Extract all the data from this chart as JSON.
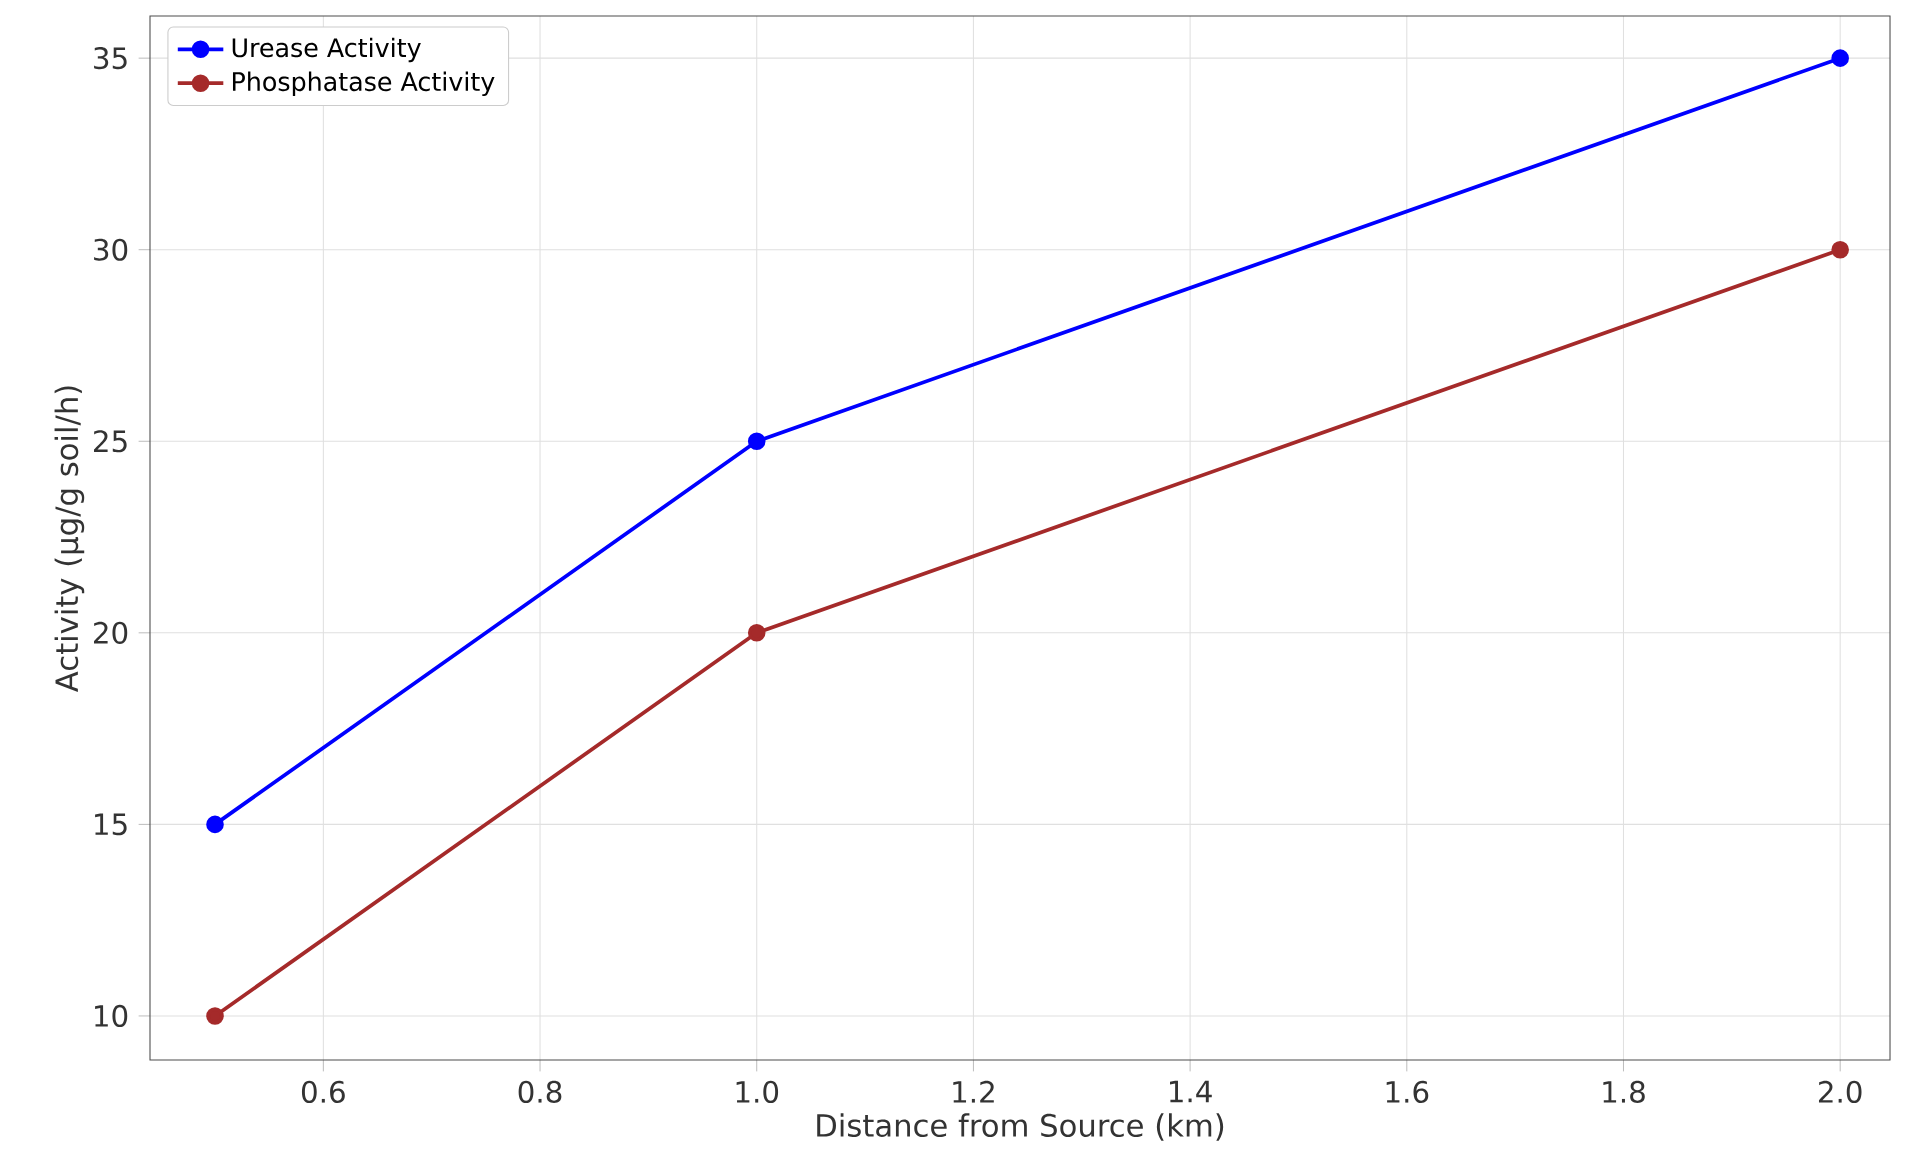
{
  "chart_data": {
    "type": "line",
    "xlabel": "Distance from Source (km)",
    "ylabel": "Activity (µg/g soil/h)",
    "x": [
      0.5,
      1.0,
      2.0
    ],
    "series": [
      {
        "name": "Urease Activity",
        "color": "#0000ff",
        "values": [
          15,
          25,
          35
        ]
      },
      {
        "name": "Phosphatase Activity",
        "color": "#a52a2a",
        "values": [
          10,
          20,
          30
        ]
      }
    ],
    "xlim": [
      0.44,
      2.046
    ],
    "ylim": [
      8.85,
      36.1
    ],
    "xticks": [
      {
        "value": 0.6,
        "label": "0.6"
      },
      {
        "value": 0.8,
        "label": "0.8"
      },
      {
        "value": 1.0,
        "label": "1.0"
      },
      {
        "value": 1.2,
        "label": "1.2"
      },
      {
        "value": 1.4,
        "label": "1.4"
      },
      {
        "value": 1.6,
        "label": "1.6"
      },
      {
        "value": 1.8,
        "label": "1.8"
      },
      {
        "value": 2.0,
        "label": "2.0"
      }
    ],
    "yticks": [
      10,
      15,
      20,
      25,
      30,
      35
    ],
    "grid": true,
    "legend": "top left",
    "marker": "circle",
    "line_style": "solid"
  }
}
